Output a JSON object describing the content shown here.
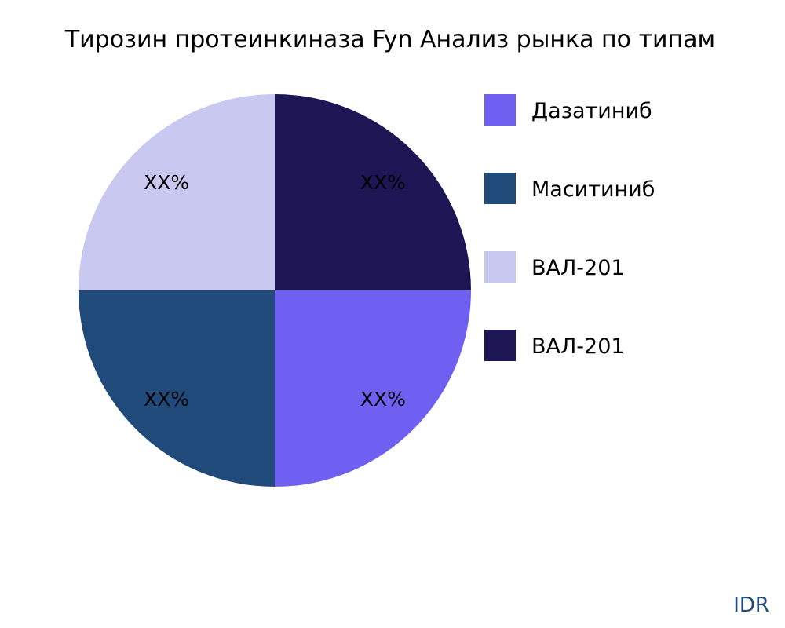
{
  "chart_data": {
    "type": "pie",
    "title": "Тирозин протеинкиназа Fyn Анализ рынка по типам",
    "slices": [
      {
        "name": "Дазатиниб",
        "value": 25,
        "label": "XX%",
        "color": "#7060f2"
      },
      {
        "name": "Маситиниб",
        "value": 25,
        "label": "XX%",
        "color": "#1f4a7a"
      },
      {
        "name": "ВАЛ-201",
        "value": 25,
        "label": "XX%",
        "color": "#c8c8f0"
      },
      {
        "name": "ВАЛ-201",
        "value": 25,
        "label": "XX%",
        "color": "#1c1655"
      }
    ],
    "legend_placement": "right"
  },
  "brand": "IDR"
}
